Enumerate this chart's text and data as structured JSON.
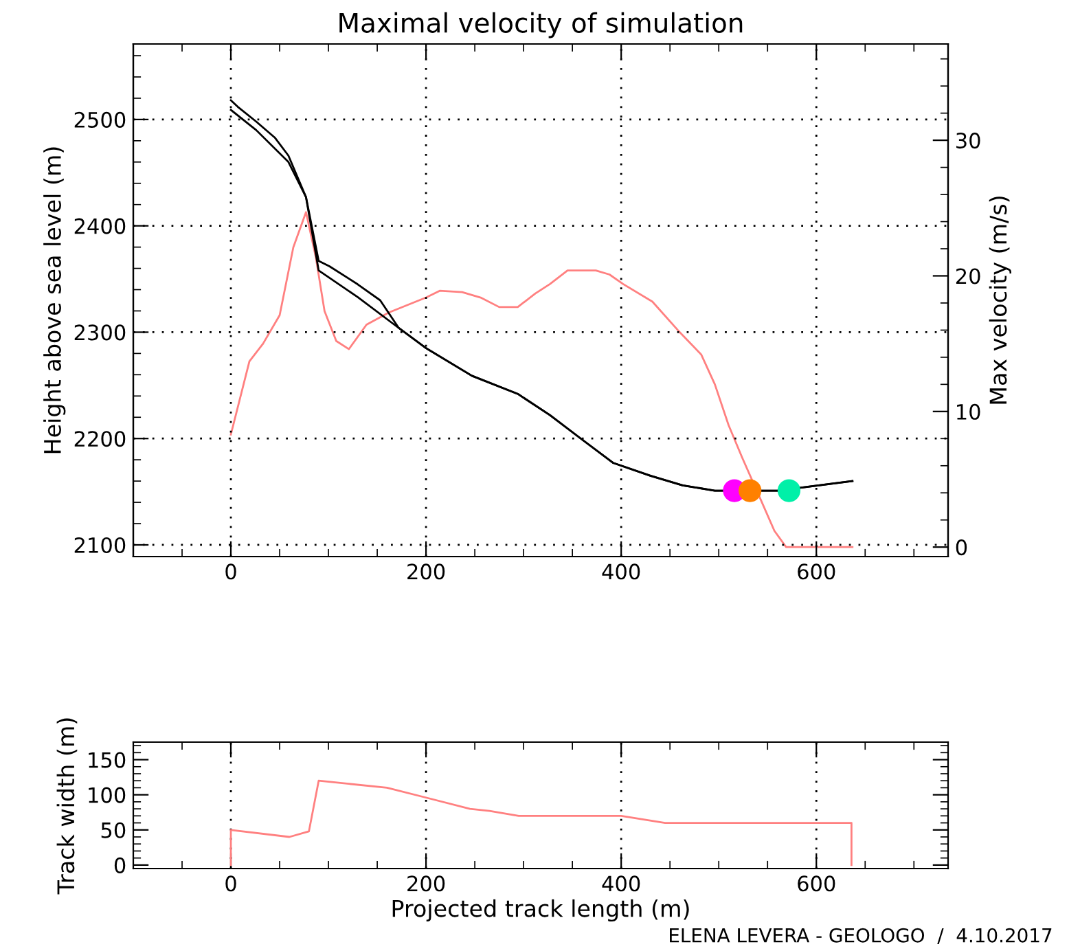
{
  "chart_data": [
    {
      "type": "line",
      "title": "Maximal velocity of simulation",
      "ylabel": "Height above sea level (m)",
      "y2label": "Max velocity (m/s)",
      "xlim": [
        -100,
        735
      ],
      "xticks": [
        0,
        200,
        400,
        600
      ],
      "ylim": [
        2089,
        2571
      ],
      "yticks": [
        2100,
        2200,
        2300,
        2400,
        2500
      ],
      "y2lim": [
        -0.7,
        37.1
      ],
      "y2ticks": [
        0,
        10,
        20,
        30
      ],
      "grid": true,
      "line_style": "solid",
      "marker": "none",
      "series": [
        {
          "color": "#000000",
          "x": [
            0,
            7,
            26,
            45,
            59,
            77,
            90,
            101,
            130,
            153,
            172,
            200,
            247,
            294,
            327,
            360,
            392,
            430,
            463,
            496,
            560,
            637
          ],
          "values": [
            2518,
            2512,
            2498,
            2483,
            2466,
            2427,
            2367,
            2362,
            2345,
            2330,
            2304,
            2285,
            2259,
            2242,
            2222,
            2199,
            2177,
            2165,
            2156,
            2151,
            2151,
            2160
          ]
        },
        {
          "color": "#000000",
          "x": [
            0,
            26,
            59,
            77,
            90,
            130,
            172,
            200,
            247,
            294,
            327,
            360,
            392,
            430,
            463,
            496,
            560,
            637
          ],
          "values": [
            2509,
            2490,
            2460,
            2427,
            2358,
            2333,
            2304,
            2285,
            2259,
            2242,
            2222,
            2199,
            2177,
            2165,
            2156,
            2151,
            2151,
            2160
          ]
        },
        {
          "color": "#ff8080",
          "axis": "y2",
          "x": [
            0,
            19,
            33,
            50,
            64,
            77,
            87,
            96,
            108,
            121,
            139,
            162,
            200,
            214,
            237,
            256,
            275,
            294,
            312,
            327,
            345,
            374,
            388,
            402,
            432,
            458,
            482,
            496,
            510,
            524,
            543,
            557,
            569,
            637
          ],
          "values": [
            8.3,
            13.7,
            15.0,
            17.1,
            22.1,
            24.7,
            21.4,
            17.4,
            15.2,
            14.6,
            16.4,
            17.3,
            18.4,
            18.9,
            18.8,
            18.4,
            17.7,
            17.7,
            18.7,
            19.4,
            20.4,
            20.4,
            20.1,
            19.4,
            18.1,
            16.0,
            14.2,
            12.0,
            9.0,
            6.6,
            3.5,
            1.2,
            0,
            0
          ]
        },
        {
          "type": "scatter",
          "marker": "circle",
          "x": [
            516,
            532,
            572
          ],
          "values": [
            2151,
            2151,
            2151
          ],
          "colors": [
            "#ff00ff",
            "#ff8000",
            "#00f0a8"
          ]
        }
      ]
    },
    {
      "type": "line",
      "xlabel": "Projected track length (m)",
      "ylabel": "Track width (m)",
      "xlim": [
        -100,
        735
      ],
      "xticks": [
        0,
        200,
        400,
        600
      ],
      "ylim": [
        -5,
        175
      ],
      "yticks": [
        0,
        50,
        100,
        150
      ],
      "grid": "x",
      "line_style": "solid",
      "marker": "none",
      "annotations": [
        "ELENA LEVERA - GEOLOGO  /  4.10.2017"
      ],
      "series": [
        {
          "color": "#ff8080",
          "x": [
            0,
            0,
            60,
            80,
            90,
            160,
            200,
            245,
            265,
            295,
            400,
            445,
            636,
            636
          ],
          "values": [
            0,
            50,
            40,
            48,
            120,
            110,
            96,
            80,
            77,
            70,
            70,
            60,
            60,
            0
          ]
        }
      ]
    }
  ]
}
